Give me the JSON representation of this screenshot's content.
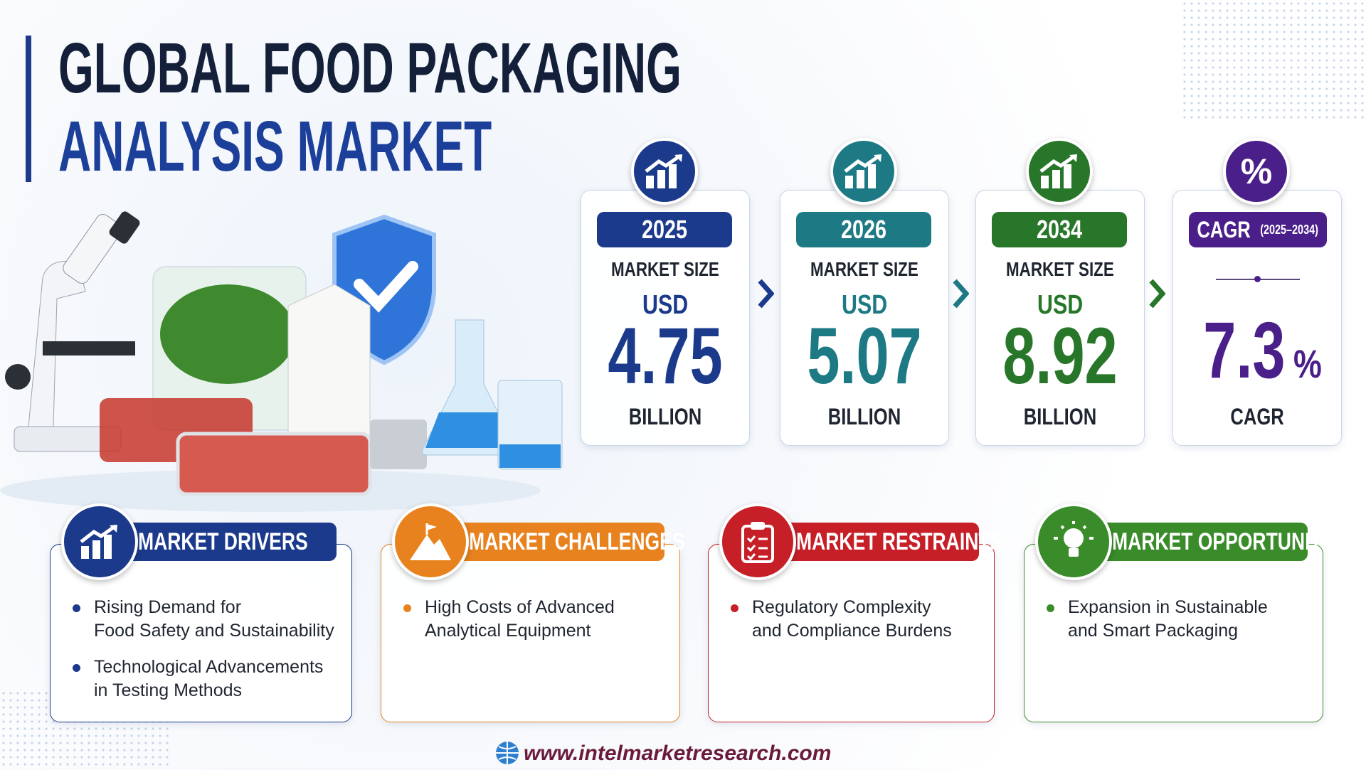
{
  "header": {
    "title_line1": "GLOBAL FOOD PACKAGING",
    "title_line2": "ANALYSIS MARKET"
  },
  "stats": [
    {
      "year": "2025",
      "label": "MARKET SIZE",
      "currency": "USD",
      "value": 4.75,
      "unit": "BILLION",
      "color": "#1b3a8c"
    },
    {
      "year": "2026",
      "label": "MARKET SIZE",
      "currency": "USD",
      "value": 5.07,
      "unit": "BILLION",
      "color": "#1d7a84"
    },
    {
      "year": "2034",
      "label": "MARKET SIZE",
      "currency": "USD",
      "value": 8.92,
      "unit": "BILLION",
      "color": "#27762a"
    }
  ],
  "cagr": {
    "icon": "%",
    "title": "CAGR",
    "period": "(2025–2034)",
    "value": 7.3,
    "suffix": "%",
    "label": "CAGR",
    "color": "#4a1f8a"
  },
  "sections": [
    {
      "title": "MARKET DRIVERS",
      "color": "#1b3a8c",
      "icon": "chart",
      "items": [
        [
          "Rising Demand for",
          "Food Safety and Sustainability"
        ],
        [
          "Technological Advancements",
          "in Testing Methods"
        ]
      ]
    },
    {
      "title": "MARKET CHALLENGES",
      "color": "#e8821e",
      "icon": "mountain",
      "items": [
        [
          "High Costs of Advanced",
          "Analytical Equipment"
        ]
      ]
    },
    {
      "title": "MARKET RESTRAINTS",
      "color": "#c71f28",
      "icon": "clipboard",
      "items": [
        [
          "Regulatory Complexity",
          "and Compliance Burdens"
        ]
      ]
    },
    {
      "title": "MARKET OPPORTUNITIES",
      "color": "#3a8c2a",
      "icon": "bulb",
      "items": [
        [
          "Expansion in Sustainable",
          "and Smart Packaging"
        ]
      ]
    }
  ],
  "footer": {
    "url": "www.intelmarketresearch.com"
  }
}
